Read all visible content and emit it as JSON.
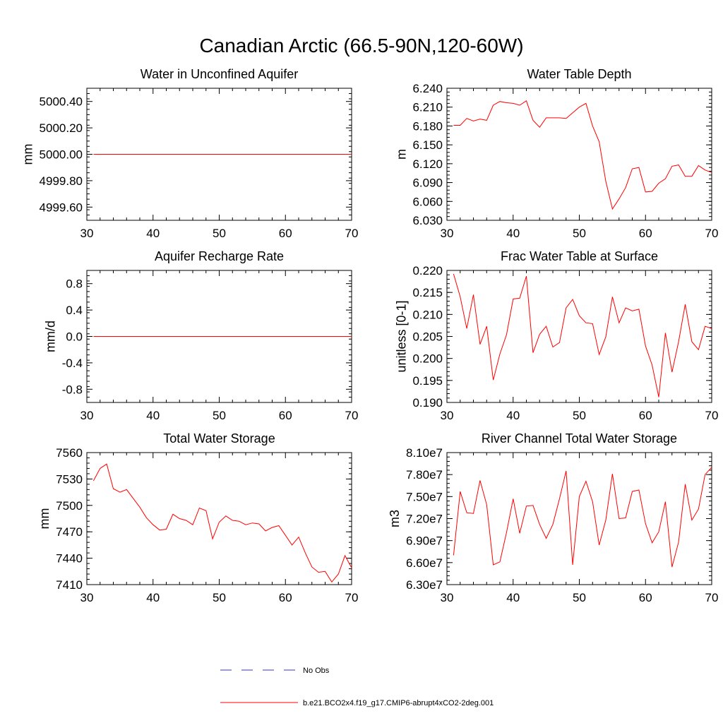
{
  "page_title": "Canadian Arctic (66.5-90N,120-60W)",
  "colors": {
    "model_line": "#ff0000",
    "obs_line": "#3a3aa8",
    "axis": "#000000"
  },
  "legend": {
    "obs_label": "No Obs",
    "model_label": "b.e21.BCO2x4.f19_g17.CMIP6-abrupt4xCO2-2deg.001"
  },
  "chart_data": [
    {
      "type": "line",
      "title": "Water in Unconfined Aquifer",
      "ylabel": "mm",
      "xlim": [
        30,
        70
      ],
      "ylim": [
        4999.5,
        5000.5
      ],
      "xticks": [
        30,
        40,
        50,
        60,
        70
      ],
      "yticks": [
        4999.6,
        4999.8,
        5000.0,
        5000.2,
        5000.4
      ],
      "ytick_labels": [
        "4999.60",
        "4999.80",
        "5000.00",
        "5000.20",
        "5000.40"
      ],
      "x_start": 31,
      "values": [
        5000,
        5000,
        5000,
        5000,
        5000,
        5000,
        5000,
        5000,
        5000,
        5000,
        5000,
        5000,
        5000,
        5000,
        5000,
        5000,
        5000,
        5000,
        5000,
        5000,
        5000,
        5000,
        5000,
        5000,
        5000,
        5000,
        5000,
        5000,
        5000,
        5000,
        5000,
        5000,
        5000,
        5000,
        5000,
        5000,
        5000,
        5000,
        5000,
        5000
      ]
    },
    {
      "type": "line",
      "title": "Water Table Depth",
      "ylabel": "m",
      "xlim": [
        30,
        70
      ],
      "ylim": [
        6.03,
        6.24
      ],
      "xticks": [
        30,
        40,
        50,
        60,
        70
      ],
      "yticks": [
        6.03,
        6.06,
        6.09,
        6.12,
        6.15,
        6.18,
        6.21,
        6.24
      ],
      "ytick_labels": [
        "6.030",
        "6.060",
        "6.090",
        "6.120",
        "6.150",
        "6.180",
        "6.210",
        "6.240"
      ],
      "x_start": 31,
      "values": [
        6.181,
        6.181,
        6.192,
        6.188,
        6.191,
        6.189,
        6.213,
        6.219,
        6.217,
        6.216,
        6.213,
        6.22,
        6.189,
        6.178,
        6.193,
        6.193,
        6.193,
        6.192,
        6.201,
        6.21,
        6.216,
        6.18,
        6.155,
        6.092,
        6.048,
        6.064,
        6.082,
        6.112,
        6.114,
        6.075,
        6.076,
        6.089,
        6.096,
        6.116,
        6.118,
        6.1,
        6.1,
        6.117,
        6.11,
        6.106
      ]
    },
    {
      "type": "line",
      "title": "Aquifer Recharge Rate",
      "ylabel": "mm/d",
      "xlim": [
        30,
        70
      ],
      "ylim": [
        -1.0,
        1.0
      ],
      "xticks": [
        30,
        40,
        50,
        60,
        70
      ],
      "yticks": [
        -0.8,
        -0.4,
        0.0,
        0.4,
        0.8
      ],
      "ytick_labels": [
        "-0.8",
        "-0.4",
        "0.0",
        "0.4",
        "0.8"
      ],
      "x_start": 31,
      "values": [
        0,
        0,
        0,
        0,
        0,
        0,
        0,
        0,
        0,
        0,
        0,
        0,
        0,
        0,
        0,
        0,
        0,
        0,
        0,
        0,
        0,
        0,
        0,
        0,
        0,
        0,
        0,
        0,
        0,
        0,
        0,
        0,
        0,
        0,
        0,
        0,
        0,
        0,
        0,
        0
      ]
    },
    {
      "type": "line",
      "title": "Frac Water Table at Surface",
      "ylabel": "unitless [0-1]",
      "xlim": [
        30,
        70
      ],
      "ylim": [
        0.19,
        0.22
      ],
      "xticks": [
        30,
        40,
        50,
        60,
        70
      ],
      "yticks": [
        0.19,
        0.195,
        0.2,
        0.205,
        0.21,
        0.215,
        0.22
      ],
      "ytick_labels": [
        "0.190",
        "0.195",
        "0.200",
        "0.205",
        "0.210",
        "0.215",
        "0.220"
      ],
      "x_start": 31,
      "values": [
        0.2192,
        0.214,
        0.2068,
        0.2145,
        0.2032,
        0.2073,
        0.1951,
        0.201,
        0.2054,
        0.2135,
        0.2137,
        0.2187,
        0.2013,
        0.2055,
        0.2073,
        0.2026,
        0.2036,
        0.2115,
        0.2134,
        0.2097,
        0.2081,
        0.2079,
        0.2009,
        0.2049,
        0.214,
        0.2081,
        0.2115,
        0.2108,
        0.2112,
        0.2028,
        0.1985,
        0.1912,
        0.2058,
        0.1969,
        0.2038,
        0.2123,
        0.2038,
        0.202,
        0.2073,
        0.2068
      ]
    },
    {
      "type": "line",
      "title": "Total Water Storage",
      "ylabel": "mm",
      "xlim": [
        30,
        70
      ],
      "ylim": [
        7410,
        7560
      ],
      "xticks": [
        30,
        40,
        50,
        60,
        70
      ],
      "yticks": [
        7410,
        7440,
        7470,
        7500,
        7530,
        7560
      ],
      "ytick_labels": [
        "7410",
        "7440",
        "7470",
        "7500",
        "7530",
        "7560"
      ],
      "x_start": 31,
      "values": [
        7528,
        7542,
        7547,
        7519,
        7515,
        7518,
        7508,
        7498,
        7486,
        7478,
        7472,
        7473,
        7490,
        7485,
        7483,
        7478,
        7497,
        7494,
        7462,
        7481,
        7488,
        7483,
        7482,
        7478,
        7480,
        7479,
        7471,
        7475,
        7477,
        7466,
        7455,
        7464,
        7446,
        7430,
        7424,
        7425,
        7413,
        7422,
        7443,
        7429
      ]
    },
    {
      "type": "line",
      "title": "River Channel Total Water Storage",
      "ylabel": "m3",
      "xlim": [
        30,
        70
      ],
      "ylim": [
        63000000,
        81000000
      ],
      "xticks": [
        30,
        40,
        50,
        60,
        70
      ],
      "yticks": [
        63000000,
        66000000,
        69000000,
        72000000,
        75000000,
        78000000,
        81000000
      ],
      "ytick_labels": [
        "6.30e7",
        "6.60e7",
        "6.90e7",
        "7.20e7",
        "7.50e7",
        "7.80e7",
        "8.10e7"
      ],
      "x_start": 31,
      "values": [
        67000000,
        75700000,
        72800000,
        72700000,
        77200000,
        73900000,
        65700000,
        66100000,
        70100000,
        74700000,
        70000000,
        73700000,
        73800000,
        71200000,
        69300000,
        71200000,
        74700000,
        78500000,
        65700000,
        75000000,
        77100000,
        74300000,
        68400000,
        71800000,
        78100000,
        72000000,
        72100000,
        75700000,
        75900000,
        71300000,
        68700000,
        70200000,
        74300000,
        65400000,
        68800000,
        76700000,
        71800000,
        73300000,
        78000000,
        79000000
      ]
    }
  ]
}
